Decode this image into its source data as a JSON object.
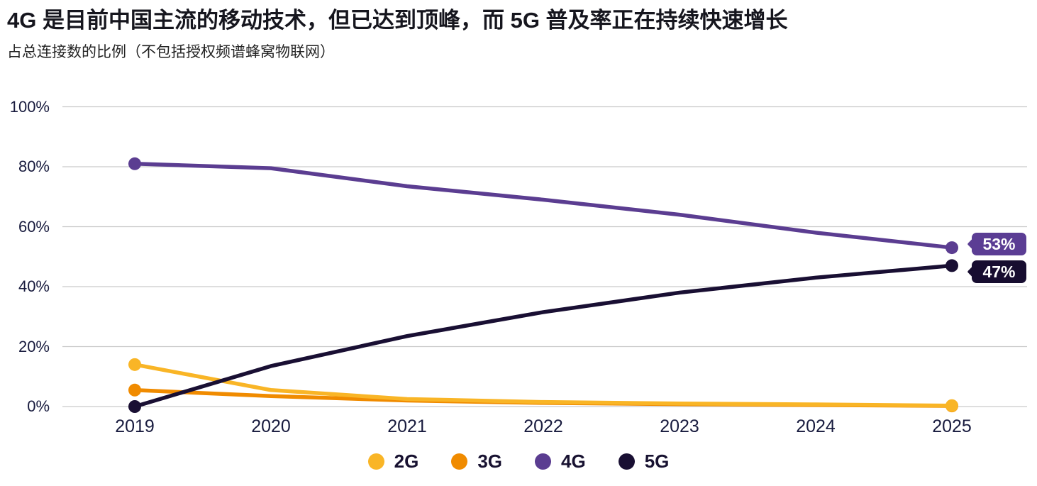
{
  "header": {
    "title": "4G 是目前中国主流的移动技术，但已达到顶峰，而 5G 普及率正在持续快速增长",
    "subtitle": "占总连接数的比例（不包括授权频谱蜂窝物联网）"
  },
  "colors": {
    "grid": "#c9c9c9",
    "axis_text": "#181b3e",
    "title_text": "#16161e",
    "badge_4g": "#5b3d94",
    "badge_5g": "#170d30"
  },
  "chart_data": {
    "type": "line",
    "x": [
      "2019",
      "2020",
      "2021",
      "2022",
      "2023",
      "2024",
      "2025"
    ],
    "series": [
      {
        "name": "2G",
        "color": "#f9b526",
        "values": [
          14,
          5.5,
          2.5,
          1.5,
          1,
          0.7,
          0.3
        ]
      },
      {
        "name": "3G",
        "color": "#f08b00",
        "values": [
          5.5,
          3.5,
          2,
          1.2,
          0.8,
          0.5,
          0.2
        ]
      },
      {
        "name": "4G",
        "color": "#5b3d91",
        "values": [
          81,
          79.5,
          73.5,
          69,
          64,
          58,
          53
        ]
      },
      {
        "name": "5G",
        "color": "#190f33",
        "values": [
          0,
          13.5,
          23.5,
          31.5,
          38,
          43,
          47
        ]
      }
    ],
    "draw_order": [
      "3G",
      "2G",
      "4G",
      "5G"
    ],
    "end_labels": [
      {
        "series": "4G",
        "text": "53%",
        "color": "#5b3d94"
      },
      {
        "series": "5G",
        "text": "47%",
        "color": "#170d30"
      }
    ],
    "ylim": [
      0,
      100
    ],
    "yticks": [
      "0%",
      "20%",
      "40%",
      "60%",
      "80%",
      "100%"
    ],
    "ytick_values": [
      0,
      20,
      40,
      60,
      80,
      100
    ],
    "grid": "horizontal",
    "legend_position": "bottom",
    "title": "4G 是目前中国主流的移动技术，但已达到顶峰，而 5G 普及率正在持续快速增长",
    "subtitle": "占总连接数的比例（不包括授权频谱蜂窝物联网）"
  }
}
